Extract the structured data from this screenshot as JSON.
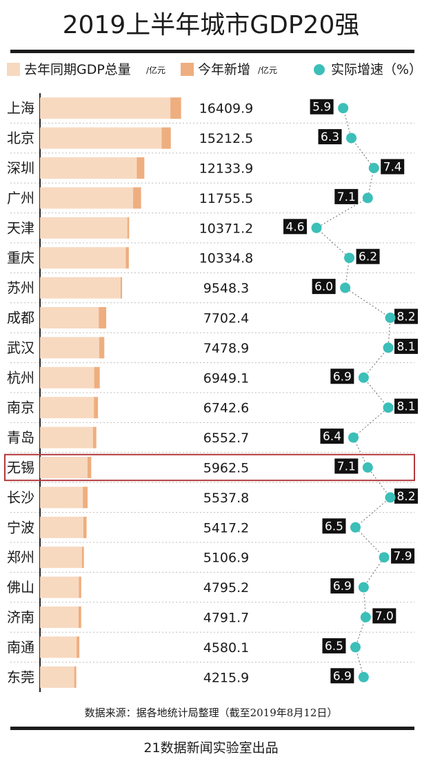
{
  "title": "2019上半年城市GDP20强",
  "legend": {
    "last_year_label": "去年同期GDP总量",
    "last_year_unit": "/亿元",
    "new_label": "今年新增",
    "new_unit": "/亿元",
    "growth_label": "实际增速（%）"
  },
  "colors": {
    "base_bar": "#f7d9c0",
    "new_bar": "#eeae7f",
    "dot": "#3bbfb8",
    "rate_box": "#111111",
    "highlight_border": "#b3373a",
    "row_line": "#bdbdbd"
  },
  "highlight_city": "无锡",
  "chart_data": {
    "type": "bar",
    "title": "2019上半年城市GDP20强",
    "categories": [
      "上海",
      "北京",
      "深圳",
      "广州",
      "天津",
      "重庆",
      "苏州",
      "成都",
      "武汉",
      "杭州",
      "南京",
      "青岛",
      "无锡",
      "长沙",
      "宁波",
      "郑州",
      "佛山",
      "济南",
      "南通",
      "东莞"
    ],
    "series": [
      {
        "name": "去年同期GDP总量",
        "values": [
          15162.5,
          14142.8,
          11262.8,
          10830.4,
          10157.0,
          9972.1,
          9366.0,
          6827.0,
          6878.7,
          6301.7,
          6263.8,
          6155.7,
          5526.2,
          4982.0,
          5040.8,
          4877.7,
          4521.0,
          4482.7,
          4258.7,
          3982.3
        ]
      },
      {
        "name": "今年新增",
        "values": [
          1247.4,
          1069.7,
          871.1,
          925.1,
          214.2,
          362.7,
          182.3,
          875.4,
          600.1,
          647.4,
          478.8,
          397.0,
          436.3,
          555.8,
          376.4,
          229.2,
          274.2,
          309.0,
          321.4,
          233.6
        ]
      }
    ],
    "totals_label": [
      "16409.9",
      "15212.5",
      "12133.9",
      "11755.5",
      "10371.2",
      "10334.8",
      "9548.3",
      "7702.4",
      "7478.9",
      "6949.1",
      "6742.6",
      "6552.7",
      "5962.5",
      "5537.8",
      "5417.2",
      "5106.9",
      "4795.2",
      "4791.7",
      "4580.1",
      "4215.9"
    ],
    "growth_rate": {
      "name": "实际增速（%）",
      "values": [
        5.9,
        6.3,
        7.4,
        7.1,
        4.6,
        6.2,
        6.0,
        8.2,
        8.1,
        6.9,
        8.1,
        6.4,
        7.1,
        8.2,
        6.5,
        7.9,
        6.9,
        7.0,
        6.5,
        6.9
      ],
      "labels": [
        "5.9",
        "6.3",
        "7.4",
        "7.1",
        "4.6",
        "6.2",
        "6.0",
        "8.2",
        "8.1",
        "6.9",
        "8.1",
        "6.4",
        "7.1",
        "8.2",
        "6.5",
        "7.9",
        "6.9",
        "7.0",
        "6.5",
        "6.9"
      ]
    },
    "xlim": [
      0,
      17000
    ],
    "rate_range": [
      4.6,
      8.2
    ],
    "grid": "dotted row separators",
    "legend_position": "top"
  },
  "source_note": "数据来源：据各地统计局整理（截至2019年8月12日）",
  "credit": "21数据新闻实验室出品"
}
